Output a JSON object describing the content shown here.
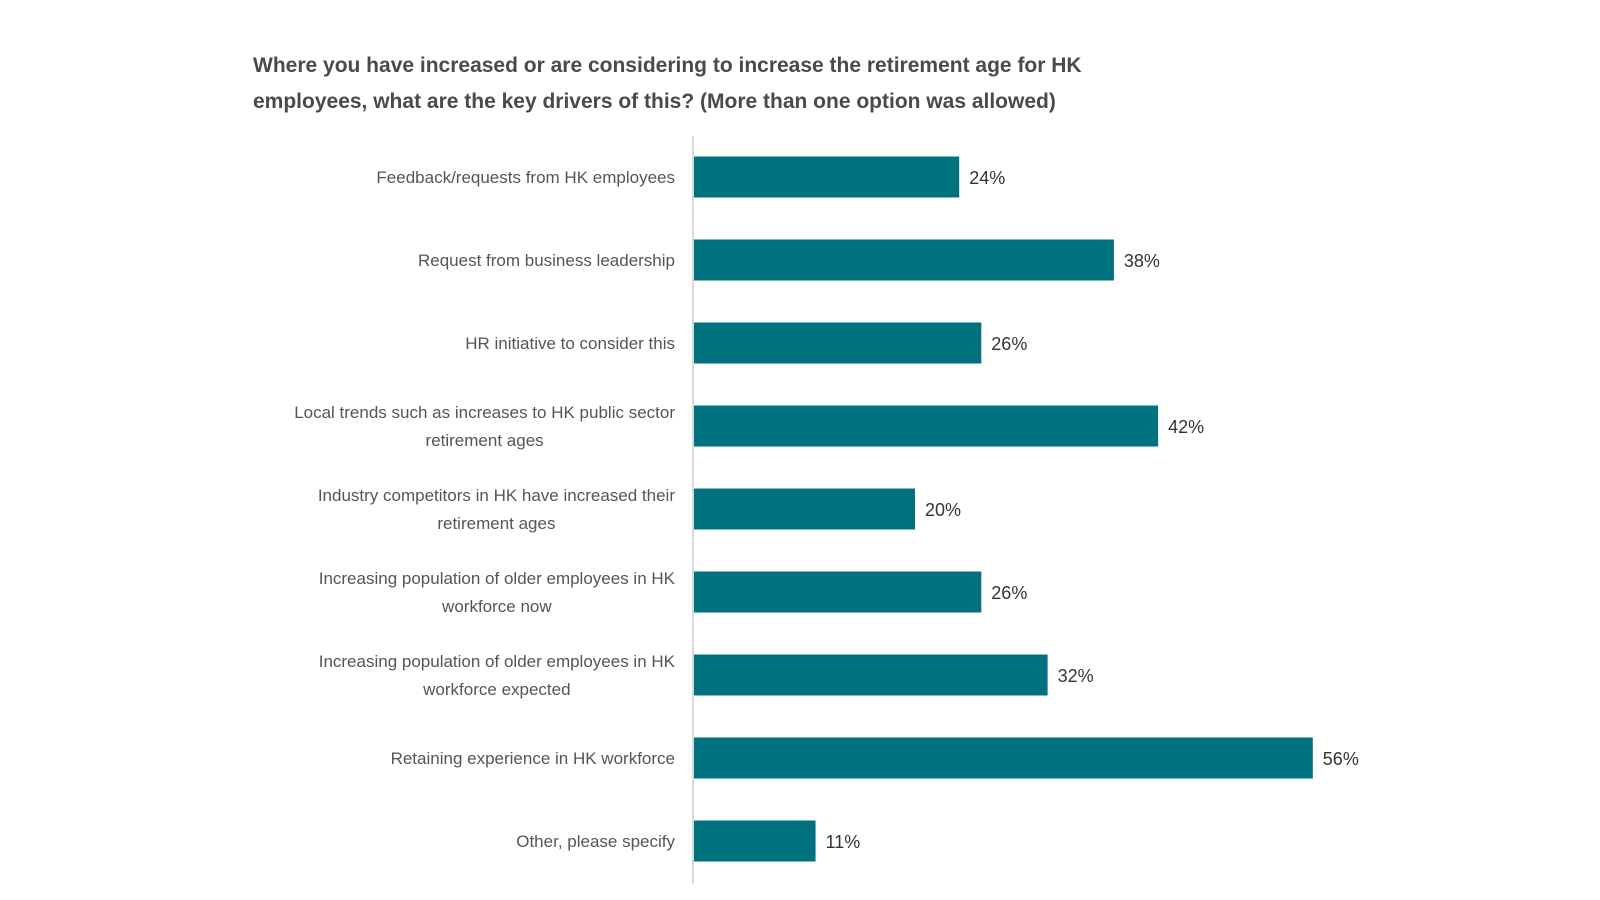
{
  "chart_data": {
    "type": "bar",
    "orientation": "horizontal",
    "title": "Where you have increased or are considering to increase the retirement age for HK\nemployees, what are the key drivers of this? (More than one option was allowed)",
    "categories": [
      [
        "Feedback/requests from HK employees"
      ],
      [
        "Request from business leadership"
      ],
      [
        "HR initiative to consider this"
      ],
      [
        "Local trends such as increases to HK public sector",
        "retirement ages"
      ],
      [
        "Industry competitors in HK have increased their",
        "retirement ages"
      ],
      [
        "Increasing population of older employees in HK",
        "workforce now"
      ],
      [
        "Increasing population of older employees in HK",
        "workforce expected"
      ],
      [
        "Retaining experience in HK workforce"
      ],
      [
        "Other, please specify"
      ]
    ],
    "values": [
      24,
      38,
      26,
      42,
      20,
      26,
      32,
      56,
      11
    ],
    "value_labels": [
      "24%",
      "38%",
      "26%",
      "42%",
      "20%",
      "26%",
      "32%",
      "56%",
      "11%"
    ],
    "bar_color": "#00717f",
    "axis_color": "#d9d9d9",
    "grid": false,
    "legend": "none"
  }
}
